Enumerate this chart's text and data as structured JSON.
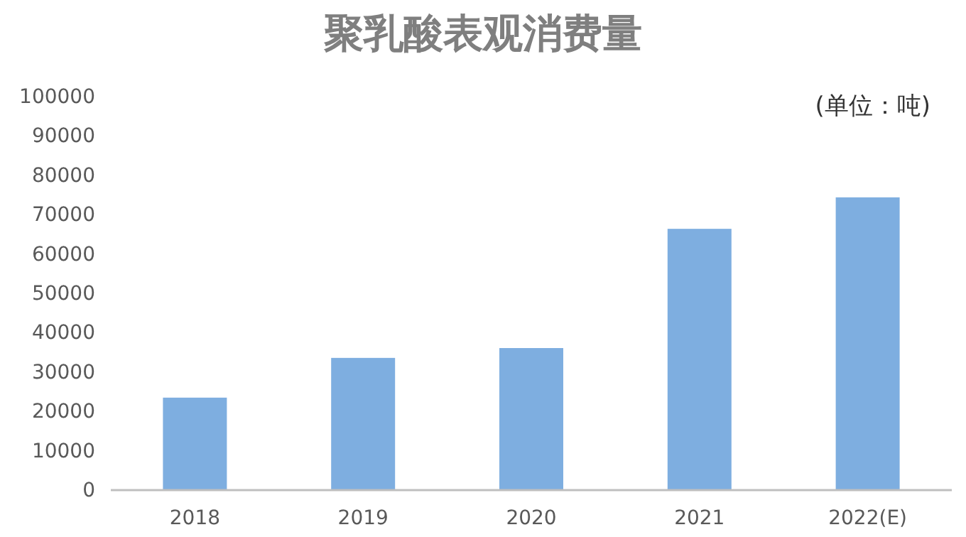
{
  "chart_data": {
    "type": "bar",
    "title": "聚乳酸表观消费量",
    "annotations": [
      "(单位：吨)"
    ],
    "categories": [
      "2018",
      "2019",
      "2020",
      "2021",
      "2022(E)"
    ],
    "values": [
      23500,
      33600,
      36100,
      66400,
      74400
    ],
    "color": "#7eaee0",
    "ylim": [
      0,
      100000
    ],
    "yticks": [
      0,
      10000,
      20000,
      30000,
      40000,
      50000,
      60000,
      70000,
      80000,
      90000,
      100000
    ],
    "grid": false
  }
}
